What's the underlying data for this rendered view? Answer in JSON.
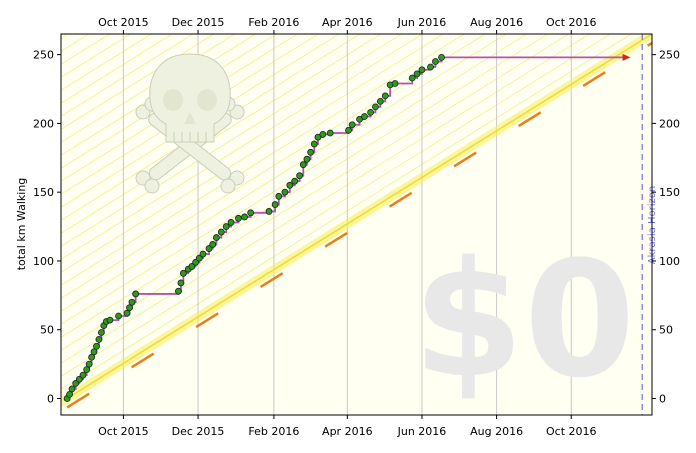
{
  "chart_data": {
    "type": "line",
    "ylabel": "total km Walking",
    "watermark": "$0",
    "horizon_label": "Akrasia Horizon",
    "xlim": [
      "2015-08-11",
      "2016-12-06"
    ],
    "ylim": [
      -12,
      265
    ],
    "x_ticks": [
      {
        "date": "2015-10-01",
        "label": "Oct 2015"
      },
      {
        "date": "2015-12-01",
        "label": "Dec 2015"
      },
      {
        "date": "2016-02-01",
        "label": "Feb 2016"
      },
      {
        "date": "2016-04-01",
        "label": "Apr 2016"
      },
      {
        "date": "2016-06-01",
        "label": "Jun 2016"
      },
      {
        "date": "2016-08-01",
        "label": "Aug 2016"
      },
      {
        "date": "2016-10-01",
        "label": "Oct 2016"
      }
    ],
    "y_ticks": [
      0,
      50,
      100,
      150,
      200,
      250
    ],
    "grid": true,
    "horizon_date": "2016-11-28",
    "target_line": {
      "start": {
        "x": "2015-08-16",
        "y": 0
      },
      "end": {
        "x": "2016-12-06",
        "y": 265
      }
    },
    "data_series": {
      "name": "total km Walking",
      "points": [
        [
          "2015-08-16",
          0
        ],
        [
          "2015-08-18",
          3
        ],
        [
          "2015-08-20",
          7
        ],
        [
          "2015-08-23",
          11
        ],
        [
          "2015-08-26",
          14
        ],
        [
          "2015-08-29",
          17
        ],
        [
          "2015-09-01",
          21
        ],
        [
          "2015-09-03",
          25
        ],
        [
          "2015-09-05",
          30
        ],
        [
          "2015-09-07",
          34
        ],
        [
          "2015-09-09",
          38
        ],
        [
          "2015-09-11",
          43
        ],
        [
          "2015-09-13",
          48
        ],
        [
          "2015-09-15",
          53
        ],
        [
          "2015-09-17",
          56
        ],
        [
          "2015-09-20",
          57
        ],
        [
          "2015-09-27",
          60
        ],
        [
          "2015-10-04",
          62
        ],
        [
          "2015-10-06",
          66
        ],
        [
          "2015-10-08",
          70
        ],
        [
          "2015-10-11",
          76
        ],
        [
          "2015-11-15",
          78
        ],
        [
          "2015-11-17",
          84
        ],
        [
          "2015-11-19",
          91
        ],
        [
          "2015-11-23",
          94
        ],
        [
          "2015-11-26",
          96
        ],
        [
          "2015-11-29",
          99
        ],
        [
          "2015-12-02",
          102
        ],
        [
          "2015-12-05",
          105
        ],
        [
          "2015-12-10",
          109
        ],
        [
          "2015-12-13",
          112
        ],
        [
          "2015-12-16",
          117
        ],
        [
          "2015-12-20",
          121
        ],
        [
          "2015-12-24",
          125
        ],
        [
          "2015-12-28",
          128
        ],
        [
          "2016-01-03",
          131
        ],
        [
          "2016-01-08",
          132
        ],
        [
          "2016-01-13",
          135
        ],
        [
          "2016-01-28",
          136
        ],
        [
          "2016-02-02",
          141
        ],
        [
          "2016-02-05",
          147
        ],
        [
          "2016-02-10",
          150
        ],
        [
          "2016-02-14",
          155
        ],
        [
          "2016-02-18",
          158
        ],
        [
          "2016-02-22",
          162
        ],
        [
          "2016-02-25",
          170
        ],
        [
          "2016-02-28",
          174
        ],
        [
          "2016-03-02",
          179
        ],
        [
          "2016-03-05",
          185
        ],
        [
          "2016-03-08",
          190
        ],
        [
          "2016-03-12",
          192
        ],
        [
          "2016-03-18",
          193
        ],
        [
          "2016-04-02",
          195
        ],
        [
          "2016-04-05",
          199
        ],
        [
          "2016-04-11",
          203
        ],
        [
          "2016-04-15",
          205
        ],
        [
          "2016-04-20",
          208
        ],
        [
          "2016-04-24",
          212
        ],
        [
          "2016-04-28",
          216
        ],
        [
          "2016-05-02",
          220
        ],
        [
          "2016-05-06",
          228
        ],
        [
          "2016-05-10",
          229
        ],
        [
          "2016-05-24",
          233
        ],
        [
          "2016-05-28",
          236
        ],
        [
          "2016-06-01",
          239
        ],
        [
          "2016-06-08",
          241
        ],
        [
          "2016-06-12",
          245
        ],
        [
          "2016-06-17",
          248
        ]
      ],
      "flat_line_end": {
        "x": "2016-11-16",
        "y": 248
      }
    },
    "colors": {
      "plot_bg": "#fffff2",
      "hatch": "#f4ea80",
      "grid": "#c8c8c8",
      "target_band": "#f7ee52",
      "target_line": "#f0d838",
      "dashed_line": "#e87f18",
      "data_line": "#b452b4",
      "point_fill": "#2c9a1e",
      "point_stroke": "#222222",
      "arrow": "#d82020",
      "horizon": "#7070e8",
      "watermark": "#e8e8e8",
      "skull": "#eef1e0"
    }
  }
}
